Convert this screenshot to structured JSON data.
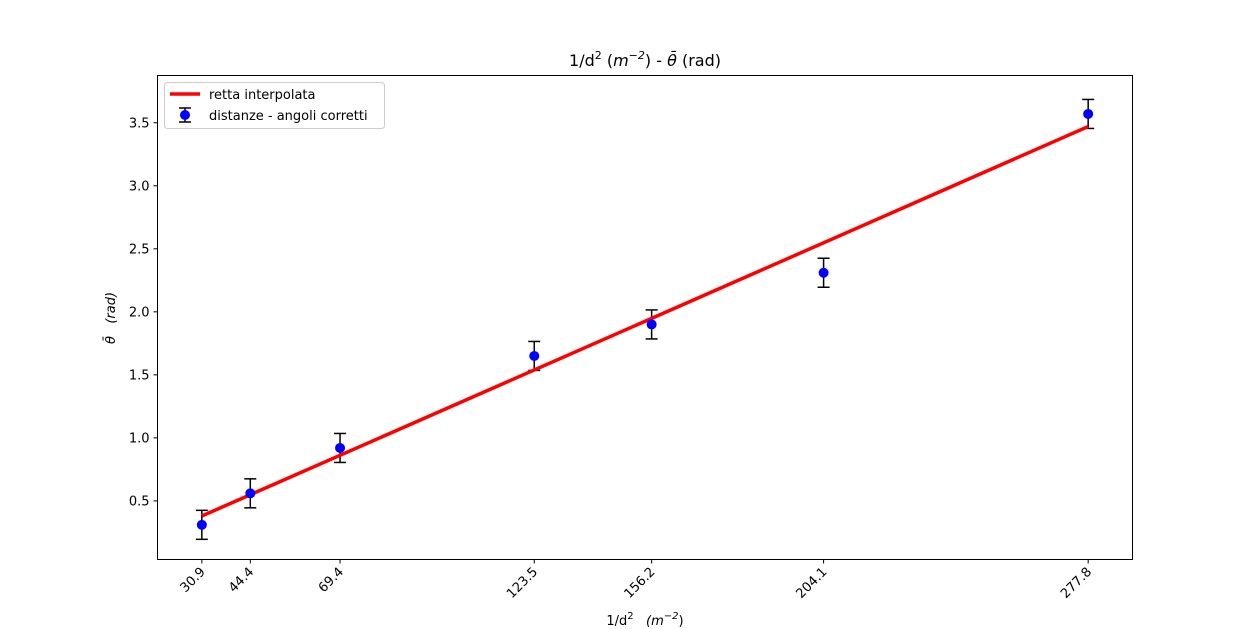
{
  "chart_data": {
    "type": "scatter",
    "title_parts": {
      "a": "1/d",
      "a_sup": "2",
      "b_open": " (",
      "b": "m",
      "b_sup": "−2",
      "b_close": ") - ",
      "theta": "θ̄",
      "c": " (rad)"
    },
    "xlabel_parts": {
      "a": "1/d",
      "a_sup": "2",
      "gap": "   ",
      "b": "(m",
      "b_sup": "−2",
      "b_close": ")"
    },
    "ylabel_parts": {
      "theta": "θ̄",
      "gap": "   ",
      "b": "(rad)"
    },
    "x_ticks": [
      30.9,
      44.4,
      69.4,
      123.5,
      156.2,
      204.1,
      277.8
    ],
    "x_tick_labels": [
      "30.9",
      "44.4",
      "69.4",
      "123.5",
      "156.2",
      "204.1",
      "277.8"
    ],
    "y_ticks": [
      0.5,
      1.0,
      1.5,
      2.0,
      2.5,
      3.0,
      3.5
    ],
    "y_tick_labels": [
      "0.5",
      "1.0",
      "1.5",
      "2.0",
      "2.5",
      "3.0",
      "3.5"
    ],
    "xlim": [
      18.55,
      290.15
    ],
    "ylim": [
      0.035,
      3.875
    ],
    "grid": false,
    "legend_placement": "upper-left",
    "series": [
      {
        "name": "retta interpolata",
        "kind": "line",
        "color": "#ff0000",
        "x": [
          30.9,
          277.8
        ],
        "y": [
          0.38,
          3.47
        ]
      },
      {
        "name": "distanze - angoli corretti",
        "kind": "errorbar",
        "color": "#0000ff",
        "errcolor": "#000000",
        "x": [
          30.9,
          44.4,
          69.4,
          123.5,
          156.2,
          204.1,
          277.8
        ],
        "y": [
          0.31,
          0.56,
          0.92,
          1.65,
          1.9,
          2.31,
          3.57
        ],
        "yerr": [
          0.115,
          0.115,
          0.115,
          0.115,
          0.115,
          0.115,
          0.115
        ]
      }
    ]
  }
}
